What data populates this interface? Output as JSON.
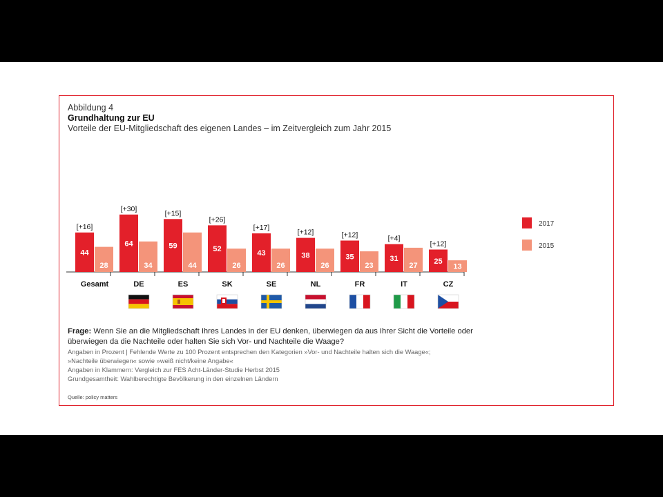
{
  "figure_label": "Abbildung 4",
  "title": "Grundhaltung zur EU",
  "subtitle": "Vorteile der EU-Mitgliedschaft des eigenen Landes – im Zeitvergleich zum Jahr 2015",
  "question_label": "Frage:",
  "question_text": "Wenn Sie an die Mitgliedschaft Ihres Landes in der EU denken, überwiegen da aus Ihrer Sicht die Vorteile oder überwiegen da die Nachteile oder halten Sie sich Vor- und Nachteile die Waage?",
  "notes": [
    "Angaben in Prozent | Fehlende Werte zu 100 Prozent entsprechen den Kategorien »Vor- und Nachteile halten sich die Waage«;",
    "»Nachteile überwiegen« sowie »weiß nicht/keine Angabe«",
    "Angaben in Klammern: Vergleich zur FES Acht-Länder-Studie Herbst 2015",
    "Grundgesamtheit: Wahlberechtigte Bevölkerung in den einzelnen Ländern"
  ],
  "source": "Quelle: policy matters",
  "colors": {
    "s2017": "#e3202a",
    "s2015": "#f4947a",
    "frame": "#e0212b"
  },
  "chart_data": {
    "type": "bar",
    "categories": [
      "Gesamt",
      "DE",
      "ES",
      "SK",
      "SE",
      "NL",
      "FR",
      "IT",
      "CZ"
    ],
    "series": [
      {
        "name": "2017",
        "values": [
          44,
          64,
          59,
          52,
          43,
          38,
          35,
          31,
          25
        ]
      },
      {
        "name": "2015",
        "values": [
          28,
          34,
          44,
          26,
          26,
          26,
          23,
          27,
          13
        ]
      }
    ],
    "annotations": [
      "[+16]",
      "[+30]",
      "[+15]",
      "[+26]",
      "[+17]",
      "[+12]",
      "[+12]",
      "[+4]",
      "[+12]"
    ],
    "flags": [
      "",
      "de-flag",
      "es-flag",
      "sk-flag",
      "se-flag",
      "nl-flag",
      "fr-flag",
      "it-flag",
      "cz-flag"
    ],
    "legend_position": "right",
    "ylim": [
      0,
      70
    ]
  }
}
